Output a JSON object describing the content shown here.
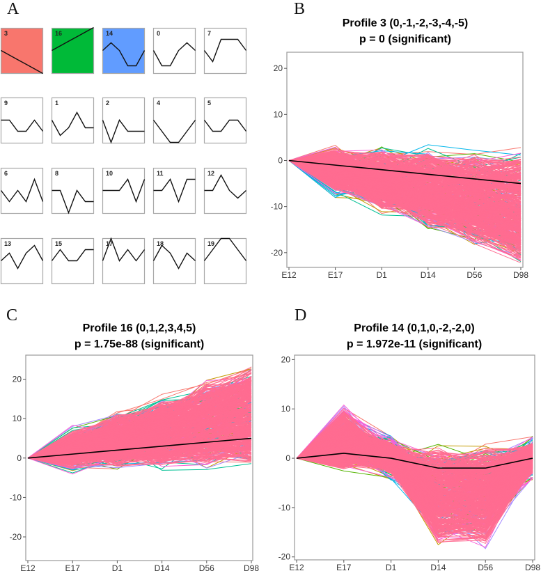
{
  "panel_labels": {
    "a": "A",
    "b": "B",
    "c": "C",
    "d": "D"
  },
  "tile_colors": {
    "3": "#F8766D",
    "16": "#00BA38",
    "14": "#619CFF"
  },
  "tiles": [
    {
      "id": "3",
      "values": [
        0,
        -1,
        -2,
        -3,
        -4,
        -5
      ]
    },
    {
      "id": "16",
      "values": [
        0,
        1,
        2,
        3,
        4,
        5
      ]
    },
    {
      "id": "14",
      "values": [
        0,
        1,
        0,
        -2,
        -2,
        0
      ]
    },
    {
      "id": "0",
      "values": [
        0,
        -2,
        -2,
        0,
        1,
        0
      ]
    },
    {
      "id": "7",
      "values": [
        0,
        -1,
        1,
        1,
        1,
        0
      ]
    },
    {
      "id": "9",
      "values": [
        0,
        0,
        -1,
        -1,
        0,
        -1
      ]
    },
    {
      "id": "1",
      "values": [
        0,
        -2,
        -1,
        1,
        -1,
        -1
      ]
    },
    {
      "id": "2",
      "values": [
        0,
        -2,
        0,
        -1,
        -1,
        -1
      ]
    },
    {
      "id": "4",
      "values": [
        0,
        -1,
        -2,
        -2,
        -1,
        0
      ]
    },
    {
      "id": "5",
      "values": [
        0,
        -1,
        -1,
        0,
        0,
        -1
      ]
    },
    {
      "id": "6",
      "values": [
        0,
        -1,
        0,
        -1,
        1,
        -1
      ]
    },
    {
      "id": "8",
      "values": [
        0,
        0,
        -2,
        0,
        -1,
        -1
      ]
    },
    {
      "id": "10",
      "values": [
        0,
        0,
        0,
        1,
        -1,
        1
      ]
    },
    {
      "id": "11",
      "values": [
        0,
        0,
        1,
        -1,
        1,
        1
      ]
    },
    {
      "id": "12",
      "values": [
        0,
        0,
        2,
        0,
        -1,
        0
      ]
    },
    {
      "id": "13",
      "values": [
        0,
        1,
        -1,
        1,
        2,
        0
      ]
    },
    {
      "id": "15",
      "values": [
        0,
        1,
        0,
        0,
        1,
        1
      ]
    },
    {
      "id": "17",
      "values": [
        0,
        2,
        0,
        1,
        0,
        1
      ]
    },
    {
      "id": "18",
      "values": [
        0,
        2,
        1,
        -1,
        1,
        0
      ]
    },
    {
      "id": "19",
      "values": [
        0,
        1,
        2,
        2,
        1,
        0
      ]
    }
  ],
  "chart_data": [
    {
      "type": "line",
      "panel": "B",
      "title": "Profile 3 (0,-1,-2,-3,-4,-5)",
      "subtitle": "p = 0 (significant)",
      "categories": [
        "E12",
        "E17",
        "D1",
        "D14",
        "D56",
        "D98"
      ],
      "yticks": [
        20,
        10,
        0,
        -10,
        -20
      ],
      "ylim": [
        -23.2,
        23.5
      ],
      "series": [
        {
          "name": "Profile 3 model",
          "values": [
            0,
            -1,
            -2,
            -3,
            -4,
            -5
          ],
          "color": "#000000"
        }
      ],
      "gene_line_colors": [
        "#F8766D",
        "#C49A00",
        "#53B400",
        "#00C094",
        "#00B6EB",
        "#A58AFF",
        "#FB61D7"
      ],
      "dominant_color": "#FF6C91"
    },
    {
      "type": "line",
      "panel": "C",
      "title": "Profile 16 (0,1,2,3,4,5)",
      "subtitle": "p = 1.75e-88 (significant)",
      "categories": [
        "E12",
        "E17",
        "D1",
        "D14",
        "D56",
        "D98"
      ],
      "yticks": [
        20,
        10,
        0,
        -10,
        -20
      ],
      "ylim": [
        -26,
        26.1
      ],
      "series": [
        {
          "name": "Profile 16 model",
          "values": [
            0,
            1,
            2,
            3,
            4,
            5
          ],
          "color": "#000000"
        }
      ],
      "gene_line_colors": [
        "#F8766D",
        "#C49A00",
        "#53B400",
        "#00C094",
        "#00B6EB",
        "#A58AFF",
        "#FB61D7"
      ],
      "dominant_color": "#FF6C91"
    },
    {
      "type": "line",
      "panel": "D",
      "title": "Profile 14 (0,1,0,-2,-2,0)",
      "subtitle": "p = 1.972e-11 (significant)",
      "categories": [
        "E12",
        "E17",
        "D1",
        "D14",
        "D56",
        "D98"
      ],
      "yticks": [
        20,
        10,
        0,
        -10,
        -20
      ],
      "ylim": [
        -20.6,
        20.9
      ],
      "series": [
        {
          "name": "Profile 14 model",
          "values": [
            0,
            1,
            0,
            -2,
            -2,
            0
          ],
          "color": "#000000"
        }
      ],
      "gene_line_colors": [
        "#F8766D",
        "#C49A00",
        "#53B400",
        "#00C094",
        "#00B6EB",
        "#A58AFF",
        "#FB61D7"
      ],
      "dominant_color": "#FF6C91"
    }
  ]
}
